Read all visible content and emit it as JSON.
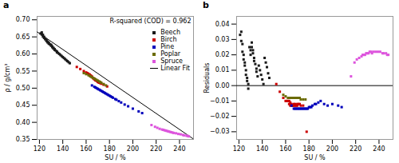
{
  "chart_data": [
    {
      "type": "scatter",
      "title": "a",
      "x_label": "SU / %",
      "y_label": "ρ / g/cm³",
      "xlim": [
        118,
        252
      ],
      "ylim": [
        0.35,
        0.71
      ],
      "xticks": [
        120,
        140,
        160,
        180,
        200,
        220,
        240
      ],
      "yticks": [
        0.35,
        {
          "value": 0.4,
          "label": "0.40"
        },
        0.45,
        {
          "value": 0.5,
          "label": "0.50"
        },
        0.55,
        {
          "value": 0.6,
          "label": "0.60"
        },
        0.65,
        {
          "value": 0.7,
          "label": "0.70"
        }
      ],
      "annotation": "R-squared (COD) = 0.962",
      "legend": "upper right",
      "series": [
        {
          "name": "Beech",
          "color": "#1a1a1a",
          "marker": "square",
          "x": [
            121,
            122,
            122,
            123,
            123,
            124,
            124,
            125,
            125,
            126,
            126,
            127,
            127,
            128,
            128,
            129,
            130,
            130,
            131,
            131,
            132,
            132,
            133,
            133,
            134,
            135,
            135,
            136,
            137,
            138,
            139,
            140,
            141,
            142,
            143,
            144,
            145,
            146
          ],
          "values": [
            0.66,
            0.663,
            0.657,
            0.656,
            0.651,
            0.65,
            0.647,
            0.645,
            0.643,
            0.641,
            0.638,
            0.636,
            0.634,
            0.633,
            0.63,
            0.628,
            0.627,
            0.624,
            0.622,
            0.62,
            0.618,
            0.616,
            0.614,
            0.612,
            0.61,
            0.607,
            0.605,
            0.603,
            0.6,
            0.597,
            0.594,
            0.591,
            0.588,
            0.585,
            0.582,
            0.579,
            0.576,
            0.573
          ]
        },
        {
          "name": "Birch",
          "color": "#cc0000",
          "marker": "square",
          "x": [
            152,
            155,
            158,
            160,
            161,
            162,
            163,
            163,
            164,
            164,
            165,
            165,
            166,
            166,
            167,
            167,
            168,
            168,
            169,
            170,
            170,
            171,
            172,
            173,
            175,
            178
          ],
          "values": [
            0.562,
            0.556,
            0.55,
            0.546,
            0.544,
            0.542,
            0.54,
            0.538,
            0.537,
            0.535,
            0.534,
            0.532,
            0.53,
            0.529,
            0.527,
            0.526,
            0.524,
            0.523,
            0.521,
            0.519,
            0.518,
            0.516,
            0.515,
            0.513,
            0.51,
            0.505
          ]
        },
        {
          "name": "Pine",
          "color": "#0000bb",
          "marker": "square",
          "x": [
            165,
            167,
            168,
            169,
            170,
            171,
            172,
            173,
            174,
            175,
            176,
            177,
            178,
            179,
            180,
            181,
            182,
            183,
            185,
            186,
            188,
            190,
            193,
            196,
            200,
            205,
            208
          ],
          "values": [
            0.508,
            0.504,
            0.502,
            0.5,
            0.498,
            0.496,
            0.494,
            0.492,
            0.49,
            0.488,
            0.486,
            0.484,
            0.482,
            0.48,
            0.478,
            0.476,
            0.474,
            0.472,
            0.468,
            0.466,
            0.462,
            0.458,
            0.452,
            0.447,
            0.44,
            0.432,
            0.427
          ]
        },
        {
          "name": "Poplar",
          "color": "#6b6b00",
          "marker": "square",
          "x": [
            158,
            160,
            162,
            163,
            164,
            165,
            166,
            167,
            168,
            169,
            170,
            171,
            172,
            173,
            175,
            177
          ],
          "values": [
            0.544,
            0.541,
            0.538,
            0.536,
            0.534,
            0.532,
            0.53,
            0.528,
            0.526,
            0.524,
            0.522,
            0.52,
            0.518,
            0.516,
            0.512,
            0.508
          ]
        },
        {
          "name": "Spruce",
          "color": "#dd55dd",
          "marker": "square",
          "x": [
            216,
            219,
            221,
            223,
            225,
            226,
            227,
            228,
            229,
            230,
            231,
            232,
            233,
            234,
            235,
            237,
            239,
            241,
            243,
            244,
            246,
            247,
            248
          ],
          "values": [
            0.392,
            0.387,
            0.384,
            0.381,
            0.379,
            0.378,
            0.377,
            0.376,
            0.375,
            0.374,
            0.373,
            0.372,
            0.371,
            0.37,
            0.369,
            0.368,
            0.366,
            0.365,
            0.363,
            0.362,
            0.361,
            0.36,
            0.359
          ]
        },
        {
          "name": "Linear Fit",
          "type": "line",
          "color": "#000000",
          "x": [
            118,
            252
          ],
          "values": [
            0.66468,
            0.35112
          ]
        }
      ]
    },
    {
      "type": "scatter",
      "title": "b",
      "x_label": "SU / %",
      "y_label": "Residuals",
      "xlim": [
        118,
        252
      ],
      "ylim": [
        -0.035,
        0.045
      ],
      "xticks": [
        120,
        140,
        160,
        180,
        200,
        220,
        240
      ],
      "yticks": [
        {
          "value": -0.03,
          "label": "−0.03"
        },
        {
          "value": -0.02,
          "label": "−0.02"
        },
        {
          "value": -0.01,
          "label": "−0.01"
        },
        {
          "value": 0,
          "label": "0.00"
        },
        0.01,
        0.02,
        0.03,
        0.04
      ],
      "series": [
        {
          "type": "rule",
          "color": "#000000",
          "values": [
            0
          ]
        },
        {
          "name": "Beech",
          "color": "#1a1a1a",
          "marker": "square",
          "x": [
            121,
            122,
            122,
            123,
            123,
            124,
            124,
            125,
            125,
            126,
            126,
            127,
            127,
            128,
            128,
            129,
            130,
            130,
            131,
            131,
            132,
            132,
            133,
            133,
            134,
            135,
            135,
            136,
            137,
            138,
            139,
            140,
            141,
            142,
            143,
            144,
            145,
            146
          ],
          "values": [
            0.033,
            0.035,
            0.029,
            0.027,
            0.022,
            0.02,
            0.017,
            0.015,
            0.013,
            0.01,
            0.007,
            0.005,
            0.003,
            0.001,
            -0.002,
            0.025,
            0.023,
            0.02,
            0.028,
            0.025,
            0.023,
            0.021,
            0.018,
            0.016,
            0.014,
            0.011,
            0.009,
            0.006,
            0.013,
            0.01,
            0.007,
            0.004,
            0.001,
            0.018,
            0.015,
            0.012,
            0.008,
            0.005
          ]
        },
        {
          "name": "Birch",
          "color": "#cc0000",
          "marker": "square",
          "x": [
            152,
            155,
            158,
            160,
            161,
            162,
            163,
            163,
            164,
            164,
            165,
            165,
            166,
            166,
            167,
            167,
            168,
            168,
            169,
            170,
            170,
            171,
            172,
            173,
            175,
            178
          ],
          "values": [
            0.001,
            -0.004,
            -0.008,
            -0.01,
            -0.01,
            -0.01,
            -0.01,
            -0.012,
            -0.011,
            -0.013,
            -0.012,
            -0.013,
            -0.013,
            -0.013,
            -0.013,
            -0.012,
            -0.012,
            -0.013,
            -0.013,
            -0.012,
            -0.013,
            -0.012,
            -0.012,
            -0.013,
            -0.013,
            -0.03
          ]
        },
        {
          "name": "Pine",
          "color": "#0000bb",
          "marker": "square",
          "x": [
            165,
            167,
            168,
            169,
            170,
            171,
            172,
            173,
            174,
            175,
            176,
            177,
            178,
            179,
            180,
            181,
            182,
            183,
            185,
            186,
            188,
            190,
            193,
            196,
            200,
            205,
            208
          ],
          "values": [
            -0.013,
            -0.015,
            -0.015,
            -0.015,
            -0.015,
            -0.015,
            -0.015,
            -0.015,
            -0.015,
            -0.015,
            -0.015,
            -0.015,
            -0.015,
            -0.015,
            -0.014,
            -0.014,
            -0.014,
            -0.013,
            -0.012,
            -0.012,
            -0.011,
            -0.01,
            -0.012,
            -0.013,
            -0.012,
            -0.013,
            -0.014
          ]
        },
        {
          "name": "Poplar",
          "color": "#6b6b00",
          "marker": "square",
          "x": [
            158,
            160,
            162,
            163,
            164,
            165,
            166,
            167,
            168,
            169,
            170,
            171,
            172,
            173,
            175,
            177
          ],
          "values": [
            -0.006,
            -0.007,
            -0.008,
            -0.008,
            -0.008,
            -0.008,
            -0.008,
            -0.008,
            -0.008,
            -0.008,
            -0.008,
            -0.008,
            -0.008,
            -0.009,
            -0.009,
            -0.009
          ]
        },
        {
          "name": "Spruce",
          "color": "#dd55dd",
          "marker": "square",
          "x": [
            216,
            219,
            221,
            223,
            225,
            226,
            227,
            228,
            229,
            230,
            231,
            232,
            233,
            234,
            235,
            237,
            239,
            241,
            243,
            244,
            246,
            247,
            248
          ],
          "values": [
            0.006,
            0.015,
            0.017,
            0.018,
            0.019,
            0.02,
            0.02,
            0.02,
            0.021,
            0.021,
            0.021,
            0.022,
            0.022,
            0.021,
            0.022,
            0.022,
            0.022,
            0.022,
            0.021,
            0.021,
            0.021,
            0.02,
            0.02
          ]
        }
      ]
    }
  ]
}
